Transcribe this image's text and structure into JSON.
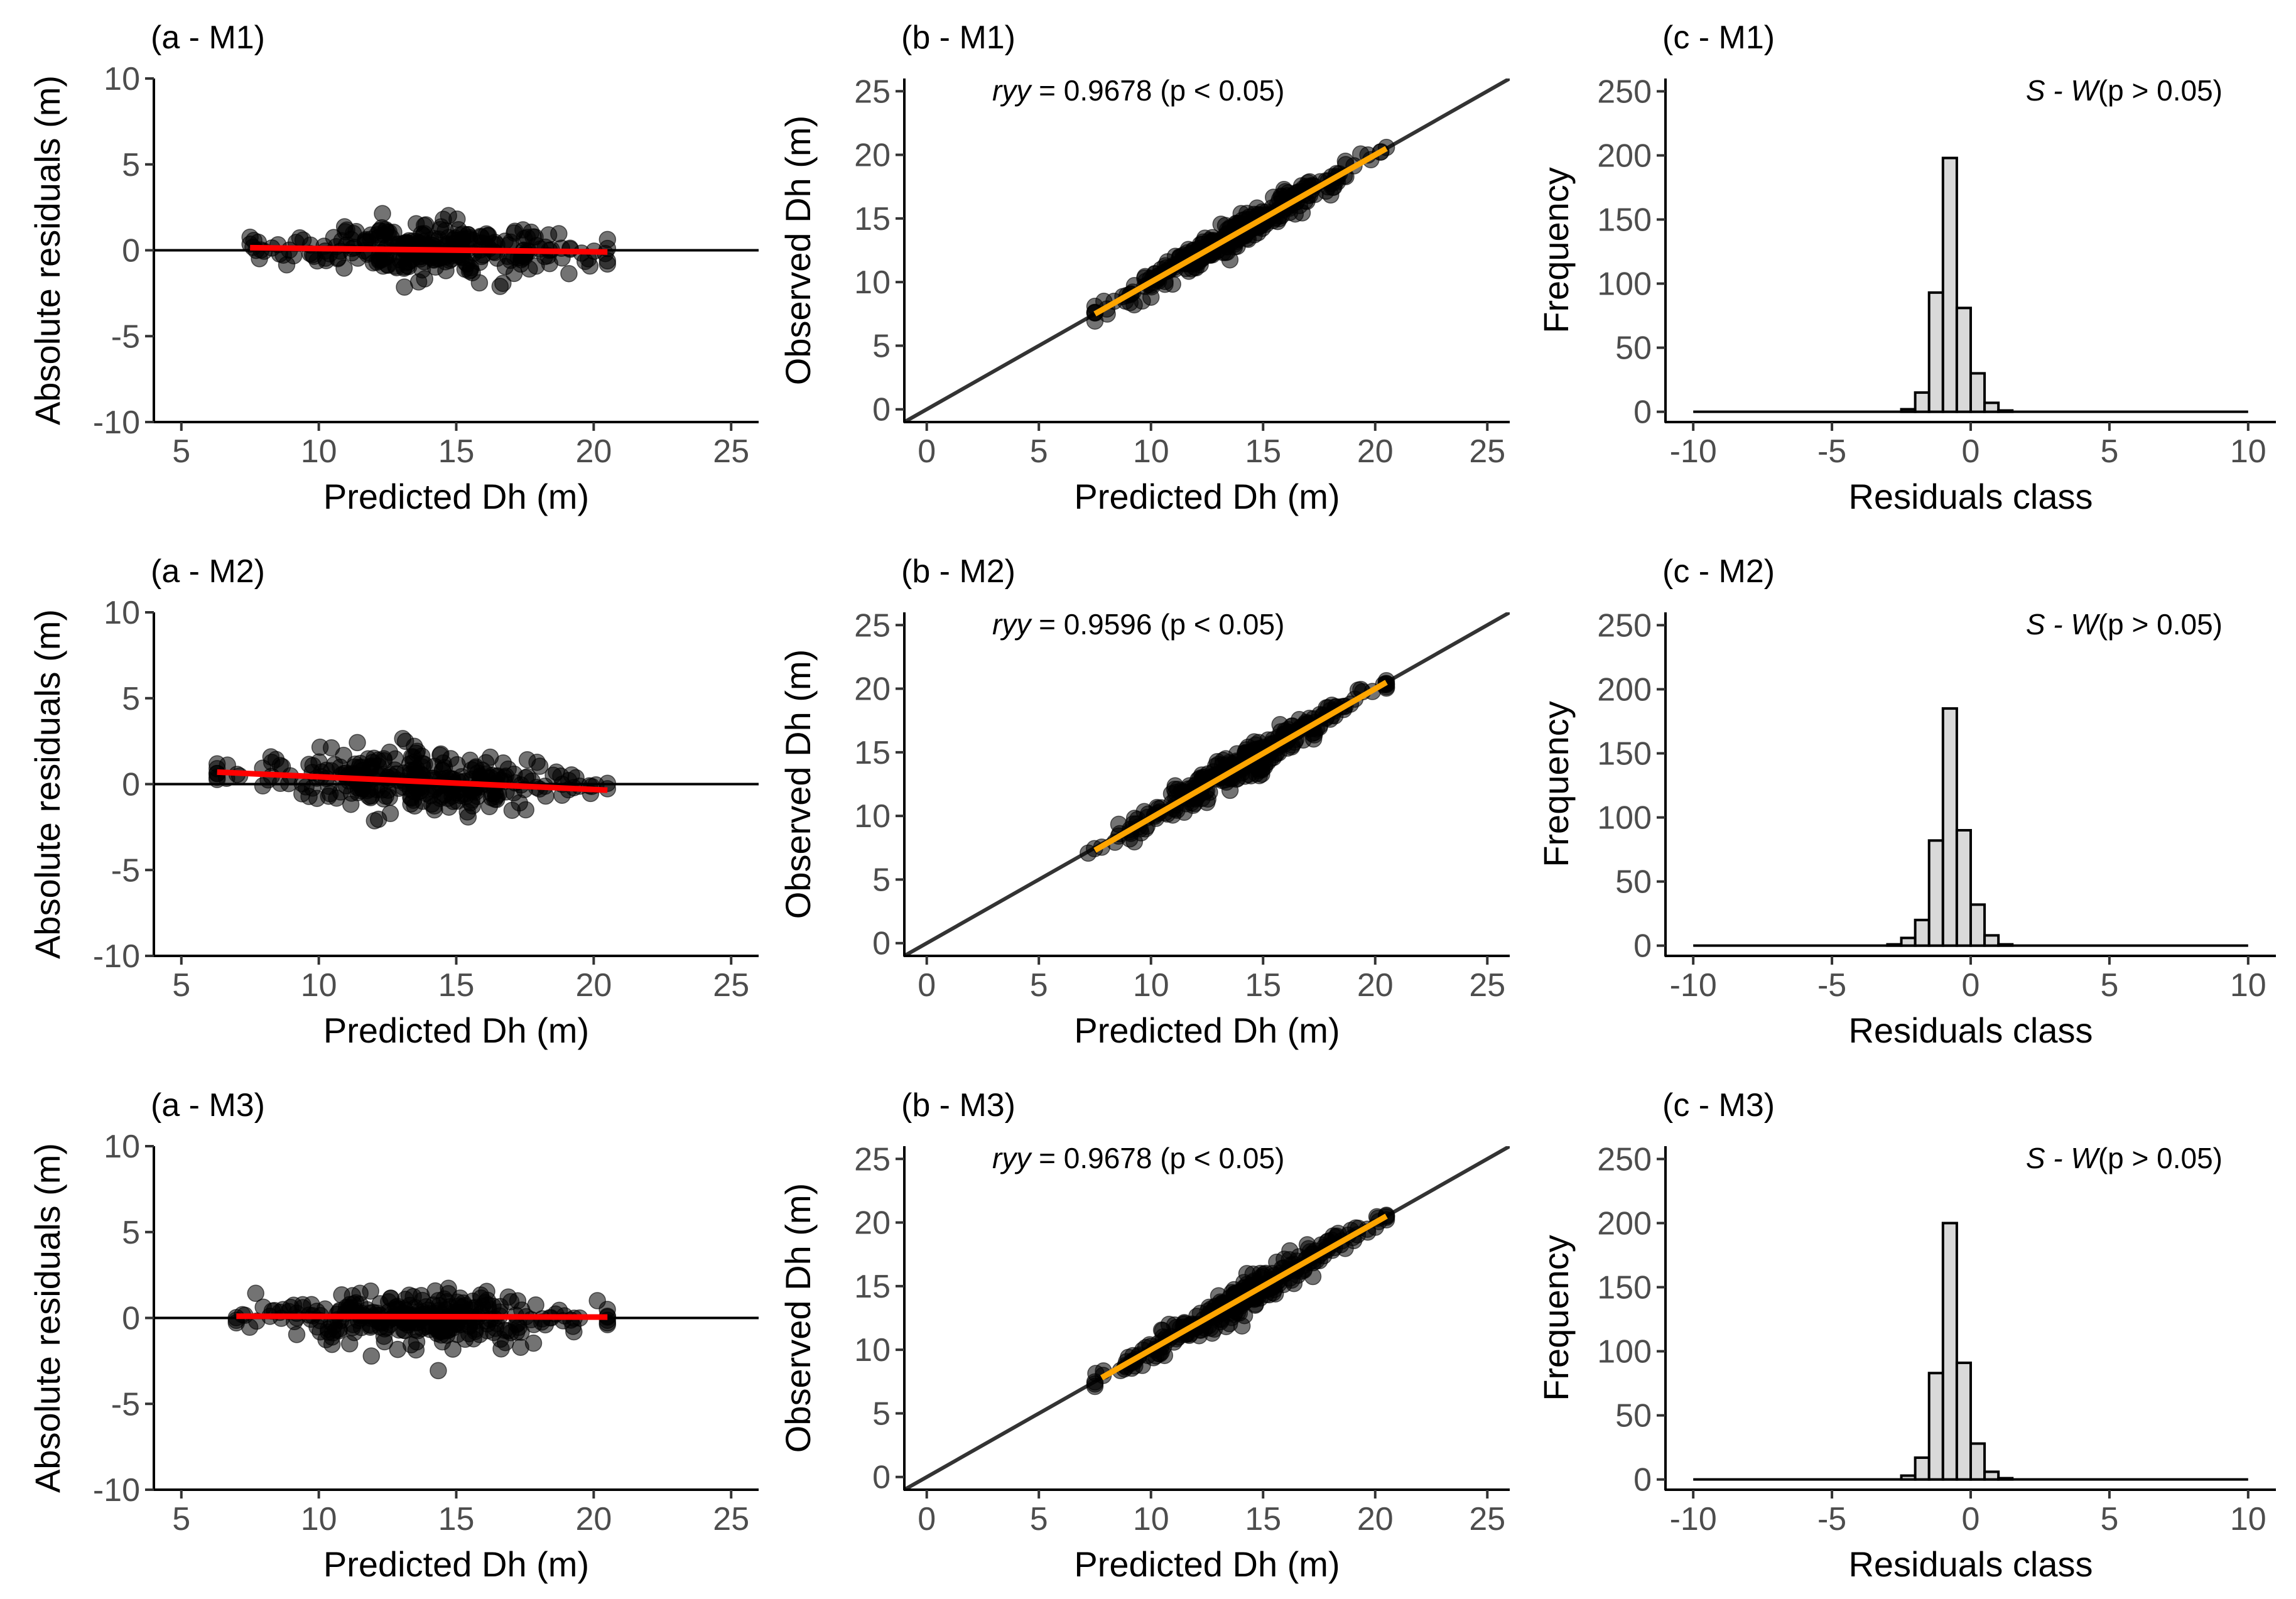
{
  "figure": {
    "panel_titles": [
      "(a - M1)",
      "(b - M1)",
      "(c - M1)",
      "(a - M2)",
      "(b - M2)",
      "(c - M2)",
      "(a - M3)",
      "(b - M3)",
      "(c - M3)"
    ]
  },
  "chart_data": [
    {
      "id": "a-M1",
      "type": "scatter",
      "title": "(a - M1)",
      "xlabel": "Predicted Dh (m)",
      "ylabel": "Absolute residuals (m)",
      "xlim": [
        4,
        26
      ],
      "ylim": [
        -10,
        10
      ],
      "xticks": [
        5,
        10,
        15,
        20,
        25
      ],
      "yticks": [
        -10,
        -5,
        0,
        5,
        10
      ],
      "point_cloud": {
        "x_range": [
          7.5,
          20.5
        ],
        "y_spread": 2.0,
        "n": 300,
        "color": "#000000",
        "opacity": 0.55
      },
      "hline": {
        "y": 0,
        "color": "#000000"
      },
      "trend_line": {
        "x": [
          7.5,
          20.5
        ],
        "y": [
          0.15,
          -0.1
        ],
        "color": "#ff0000"
      }
    },
    {
      "id": "b-M1",
      "type": "scatter",
      "title": "(b - M1)",
      "xlabel": "Predicted Dh (m)",
      "ylabel": "Observed Dh (m)",
      "xlim": [
        -1,
        26
      ],
      "ylim": [
        -1,
        26
      ],
      "xticks": [
        0,
        5,
        10,
        15,
        20,
        25
      ],
      "yticks": [
        0,
        5,
        10,
        15,
        20,
        25
      ],
      "point_cloud": {
        "x_range": [
          7.5,
          20.5
        ],
        "y_spread": 1.2,
        "n": 300,
        "color": "#000000",
        "opacity": 0.55
      },
      "identity_line": {
        "color": "#333333"
      },
      "fit_line": {
        "x": [
          7.5,
          20.5
        ],
        "y": [
          7.5,
          20.5
        ],
        "color": "#ffa500"
      },
      "annotation": {
        "italic": "ryy",
        "text": " = 0.9678 (p < 0.05)"
      }
    },
    {
      "id": "c-M1",
      "type": "bar",
      "title": "(c - M1)",
      "xlabel": "Residuals class",
      "ylabel": "Frequency",
      "xlim": [
        -11,
        11
      ],
      "ylim": [
        -8,
        260
      ],
      "xticks": [
        -10,
        -5,
        0,
        5,
        10
      ],
      "yticks": [
        0,
        50,
        100,
        150,
        200,
        250
      ],
      "bin_width": 0.5,
      "range": [
        -10,
        10
      ],
      "bins": [
        [
          -2.5,
          2
        ],
        [
          -2.0,
          15
        ],
        [
          -1.5,
          93
        ],
        [
          -1.0,
          198
        ],
        [
          -0.5,
          81
        ],
        [
          0.0,
          30
        ],
        [
          0.5,
          7
        ],
        [
          1.0,
          1
        ]
      ],
      "bin_centers_note": "pairs are [bin left edge - 0.5 + offset, count]",
      "annotation": {
        "italic": "S - W",
        "text": "(p > 0.05)"
      }
    },
    {
      "id": "a-M2",
      "type": "scatter",
      "title": "(a - M2)",
      "xlabel": "Predicted Dh (m)",
      "ylabel": "Absolute residuals (m)",
      "xlim": [
        4,
        26
      ],
      "ylim": [
        -10,
        10
      ],
      "xticks": [
        5,
        10,
        15,
        20,
        25
      ],
      "yticks": [
        -10,
        -5,
        0,
        5,
        10
      ],
      "point_cloud": {
        "x_range": [
          6.3,
          20.5
        ],
        "y_spread": 2.1,
        "n": 300,
        "color": "#000000",
        "opacity": 0.55
      },
      "hline": {
        "y": 0,
        "color": "#000000"
      },
      "trend_line": {
        "x": [
          6.3,
          20.5
        ],
        "y": [
          0.7,
          -0.35
        ],
        "color": "#ff0000"
      }
    },
    {
      "id": "b-M2",
      "type": "scatter",
      "title": "(b - M2)",
      "xlabel": "Predicted Dh (m)",
      "ylabel": "Observed Dh (m)",
      "xlim": [
        -1,
        26
      ],
      "ylim": [
        -1,
        26
      ],
      "xticks": [
        0,
        5,
        10,
        15,
        20,
        25
      ],
      "yticks": [
        0,
        5,
        10,
        15,
        20,
        25
      ],
      "point_cloud": {
        "x_range": [
          7.2,
          20.5
        ],
        "y_spread": 1.3,
        "n": 300,
        "color": "#000000",
        "opacity": 0.55
      },
      "identity_line": {
        "color": "#333333"
      },
      "fit_line": {
        "x": [
          7.5,
          20.5
        ],
        "y": [
          7.3,
          20.5
        ],
        "color": "#ffa500"
      },
      "annotation": {
        "italic": "ryy",
        "text": " = 0.9596 (p < 0.05)"
      }
    },
    {
      "id": "c-M2",
      "type": "bar",
      "title": "(c - M2)",
      "xlabel": "Residuals class",
      "ylabel": "Frequency",
      "xlim": [
        -11,
        11
      ],
      "ylim": [
        -8,
        260
      ],
      "xticks": [
        -10,
        -5,
        0,
        5,
        10
      ],
      "yticks": [
        0,
        50,
        100,
        150,
        200,
        250
      ],
      "bin_width": 0.5,
      "range": [
        -10,
        10
      ],
      "bins": [
        [
          -3.0,
          1
        ],
        [
          -2.5,
          6
        ],
        [
          -2.0,
          20
        ],
        [
          -1.5,
          82
        ],
        [
          -1.0,
          185
        ],
        [
          -0.5,
          90
        ],
        [
          0.0,
          32
        ],
        [
          0.5,
          8
        ],
        [
          1.0,
          1
        ]
      ],
      "annotation": {
        "italic": "S - W",
        "text": "(p > 0.05)"
      }
    },
    {
      "id": "a-M3",
      "type": "scatter",
      "title": "(a - M3)",
      "xlabel": "Predicted Dh (m)",
      "ylabel": "Absolute residuals (m)",
      "xlim": [
        4,
        26
      ],
      "ylim": [
        -10,
        10
      ],
      "xticks": [
        5,
        10,
        15,
        20,
        25
      ],
      "yticks": [
        -10,
        -5,
        0,
        5,
        10
      ],
      "point_cloud": {
        "x_range": [
          7.0,
          20.5
        ],
        "y_spread": 2.0,
        "n": 300,
        "color": "#000000",
        "opacity": 0.55
      },
      "hline": {
        "y": 0,
        "color": "#000000"
      },
      "trend_line": {
        "x": [
          7.0,
          20.5
        ],
        "y": [
          0.1,
          0.05
        ],
        "color": "#ff0000"
      }
    },
    {
      "id": "b-M3",
      "type": "scatter",
      "title": "(b - M3)",
      "xlabel": "Predicted Dh (m)",
      "ylabel": "Observed Dh (m)",
      "xlim": [
        -1,
        26
      ],
      "ylim": [
        -1,
        26
      ],
      "xticks": [
        0,
        5,
        10,
        15,
        20,
        25
      ],
      "yticks": [
        0,
        5,
        10,
        15,
        20,
        25
      ],
      "point_cloud": {
        "x_range": [
          7.5,
          20.5
        ],
        "y_spread": 1.2,
        "n": 300,
        "color": "#000000",
        "opacity": 0.55
      },
      "identity_line": {
        "color": "#333333"
      },
      "fit_line": {
        "x": [
          7.8,
          20.5
        ],
        "y": [
          7.8,
          20.5
        ],
        "color": "#ffa500"
      },
      "annotation": {
        "italic": "ryy",
        "text": " = 0.9678 (p < 0.05)"
      }
    },
    {
      "id": "c-M3",
      "type": "bar",
      "title": "(c - M3)",
      "xlabel": "Residuals class",
      "ylabel": "Frequency",
      "xlim": [
        -11,
        11
      ],
      "ylim": [
        -8,
        260
      ],
      "xticks": [
        -10,
        -5,
        0,
        5,
        10
      ],
      "yticks": [
        0,
        50,
        100,
        150,
        200,
        250
      ],
      "bin_width": 0.5,
      "range": [
        -10,
        10
      ],
      "bins": [
        [
          -2.5,
          3
        ],
        [
          -2.0,
          17
        ],
        [
          -1.5,
          83
        ],
        [
          -1.0,
          200
        ],
        [
          -0.5,
          91
        ],
        [
          0.0,
          28
        ],
        [
          0.5,
          6
        ],
        [
          1.0,
          1
        ]
      ],
      "annotation": {
        "italic": "S - W",
        "text": "(p > 0.05)"
      }
    }
  ]
}
